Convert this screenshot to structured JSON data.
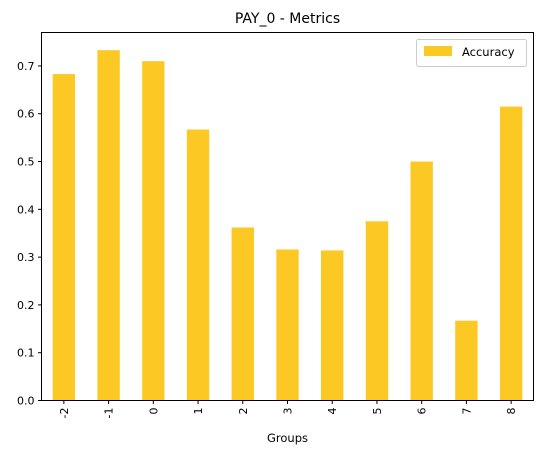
{
  "chart_data": {
    "type": "bar",
    "title": "PAY_0 - Metrics",
    "xlabel": "Groups",
    "ylabel": "",
    "categories": [
      "-2",
      "-1",
      "0",
      "1",
      "2",
      "3",
      "4",
      "5",
      "6",
      "7",
      "8"
    ],
    "series": [
      {
        "name": "Accuracy",
        "color": "#fcc824",
        "values": [
          0.683,
          0.733,
          0.71,
          0.567,
          0.362,
          0.316,
          0.314,
          0.375,
          0.5,
          0.167,
          0.615
        ]
      }
    ],
    "ylim": [
      0,
      0.77
    ],
    "yticks": [
      "0.0",
      "0.1",
      "0.2",
      "0.3",
      "0.4",
      "0.5",
      "0.6",
      "0.7"
    ],
    "legend_position": "top-right",
    "grid": false
  }
}
